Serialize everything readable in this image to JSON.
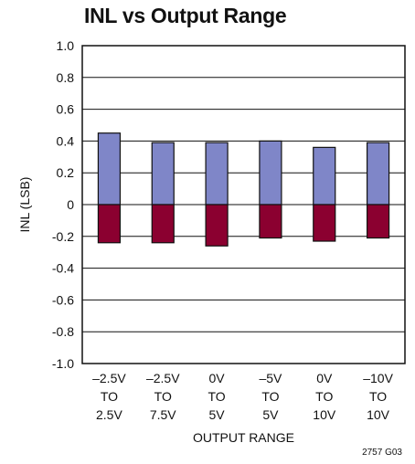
{
  "chart_data": {
    "type": "bar",
    "title": "INL vs Output Range",
    "ylabel": "INL (LSB)",
    "xlabel": "OUTPUT RANGE",
    "ylim": [
      -1.0,
      1.0
    ],
    "yticks": [
      "1.0",
      "0.8",
      "0.6",
      "0.4",
      "0.2",
      "0",
      "-0.2",
      "-0.4",
      "-0.6",
      "-0.8",
      "-1.0"
    ],
    "ytick_values": [
      1.0,
      0.8,
      0.6,
      0.4,
      0.2,
      0,
      -0.2,
      -0.4,
      -0.6,
      -0.8,
      -1.0
    ],
    "categories": [
      [
        "–2.5V",
        "TO",
        "2.5V"
      ],
      [
        "–2.5V",
        "TO",
        "7.5V"
      ],
      [
        "0V",
        "TO",
        "5V"
      ],
      [
        "–5V",
        "TO",
        "5V"
      ],
      [
        "0V",
        "TO",
        "10V"
      ],
      [
        "–10V",
        "TO",
        "10V"
      ]
    ],
    "series": [
      {
        "values": [
          0.45,
          0.39,
          0.39,
          0.4,
          0.36,
          0.39
        ],
        "color": "#7f86c8"
      },
      {
        "values": [
          -0.24,
          -0.24,
          -0.26,
          -0.21,
          -0.23,
          -0.21
        ],
        "color": "#8b0030"
      }
    ],
    "grid": true,
    "figure_code": "2757 G03"
  }
}
